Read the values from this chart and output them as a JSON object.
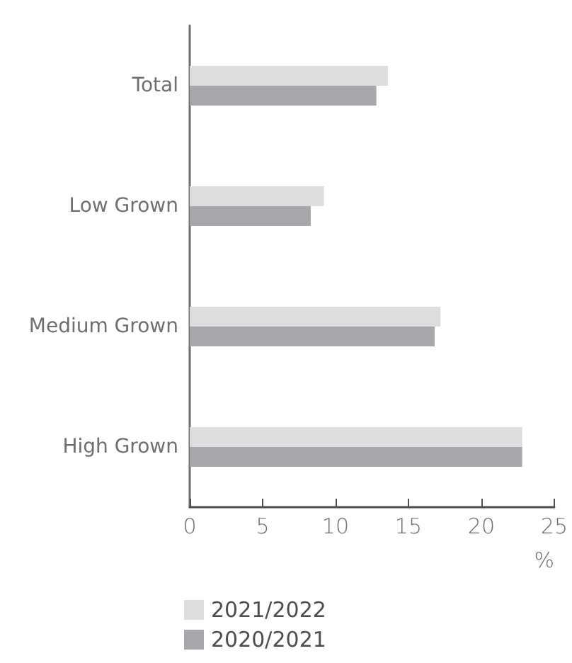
{
  "chart_data": {
    "type": "bar",
    "orientation": "horizontal",
    "categories": [
      "Total",
      "Low Grown",
      "Medium Grown",
      "High Grown"
    ],
    "series": [
      {
        "name": "2021/2022",
        "color": "#dcdddf",
        "values": [
          13.6,
          9.2,
          17.2,
          22.8
        ]
      },
      {
        "name": "2020/2021",
        "color": "#a7a8ab",
        "values": [
          12.8,
          8.3,
          16.8,
          22.8
        ]
      }
    ],
    "xlabel": "%",
    "xlim": [
      0,
      25
    ],
    "xticks": [
      0,
      5,
      10,
      15,
      20,
      25
    ],
    "grid": false,
    "legend": "bottom"
  }
}
